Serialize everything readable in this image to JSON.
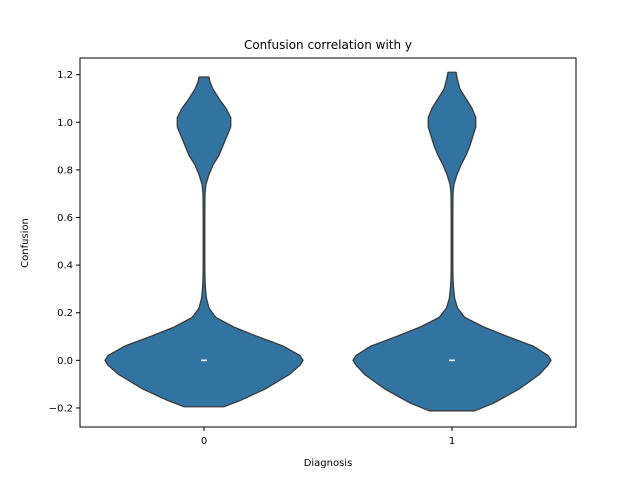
{
  "chart_data": {
    "type": "violin",
    "title": "Confusion correlation with y",
    "xlabel": "Diagnosis",
    "ylabel": "Confusion",
    "categories": [
      "0",
      "1"
    ],
    "ylim": [
      -0.28,
      1.27
    ],
    "yticks": [
      -0.2,
      0.0,
      0.2,
      0.4,
      0.6,
      0.8,
      1.0,
      1.2
    ],
    "ytick_labels": [
      "−0.2",
      "0.0",
      "0.2",
      "0.4",
      "0.6",
      "0.8",
      "1.0",
      "1.2"
    ],
    "grid": false,
    "fill_color": "#3274a1",
    "edge_color": "#3a3a3a",
    "median_color": "#ffffff",
    "violins": [
      {
        "category": "0",
        "median": 0.0,
        "range": [
          -0.195,
          1.19
        ],
        "profile": [
          [
            -0.195,
            0.2
          ],
          [
            -0.17,
            0.36
          ],
          [
            -0.12,
            0.62
          ],
          [
            -0.06,
            0.86
          ],
          [
            -0.02,
            0.97
          ],
          [
            0.0,
            1.0
          ],
          [
            0.02,
            0.97
          ],
          [
            0.06,
            0.8
          ],
          [
            0.1,
            0.54
          ],
          [
            0.14,
            0.3
          ],
          [
            0.18,
            0.12
          ],
          [
            0.22,
            0.05
          ],
          [
            0.26,
            0.025
          ],
          [
            0.3,
            0.015
          ],
          [
            0.34,
            0.01
          ],
          [
            0.4,
            0.008
          ],
          [
            0.5,
            0.008
          ],
          [
            0.6,
            0.008
          ],
          [
            0.7,
            0.01
          ],
          [
            0.74,
            0.02
          ],
          [
            0.78,
            0.05
          ],
          [
            0.82,
            0.09
          ],
          [
            0.86,
            0.15
          ],
          [
            0.9,
            0.19
          ],
          [
            0.94,
            0.23
          ],
          [
            0.98,
            0.27
          ],
          [
            1.02,
            0.27
          ],
          [
            1.06,
            0.22
          ],
          [
            1.1,
            0.15
          ],
          [
            1.14,
            0.09
          ],
          [
            1.17,
            0.06
          ],
          [
            1.19,
            0.05
          ]
        ]
      },
      {
        "category": "1",
        "median": 0.0,
        "range": [
          -0.212,
          1.21
        ],
        "profile": [
          [
            -0.212,
            0.23
          ],
          [
            -0.18,
            0.42
          ],
          [
            -0.12,
            0.68
          ],
          [
            -0.06,
            0.88
          ],
          [
            -0.02,
            0.97
          ],
          [
            0.0,
            1.0
          ],
          [
            0.02,
            0.97
          ],
          [
            0.06,
            0.82
          ],
          [
            0.1,
            0.56
          ],
          [
            0.14,
            0.32
          ],
          [
            0.18,
            0.13
          ],
          [
            0.22,
            0.055
          ],
          [
            0.26,
            0.027
          ],
          [
            0.3,
            0.016
          ],
          [
            0.34,
            0.01
          ],
          [
            0.4,
            0.008
          ],
          [
            0.5,
            0.008
          ],
          [
            0.6,
            0.008
          ],
          [
            0.7,
            0.01
          ],
          [
            0.74,
            0.02
          ],
          [
            0.78,
            0.05
          ],
          [
            0.82,
            0.09
          ],
          [
            0.86,
            0.14
          ],
          [
            0.9,
            0.18
          ],
          [
            0.94,
            0.21
          ],
          [
            0.98,
            0.24
          ],
          [
            1.02,
            0.24
          ],
          [
            1.06,
            0.2
          ],
          [
            1.1,
            0.14
          ],
          [
            1.14,
            0.08
          ],
          [
            1.18,
            0.055
          ],
          [
            1.21,
            0.04
          ]
        ]
      }
    ]
  }
}
